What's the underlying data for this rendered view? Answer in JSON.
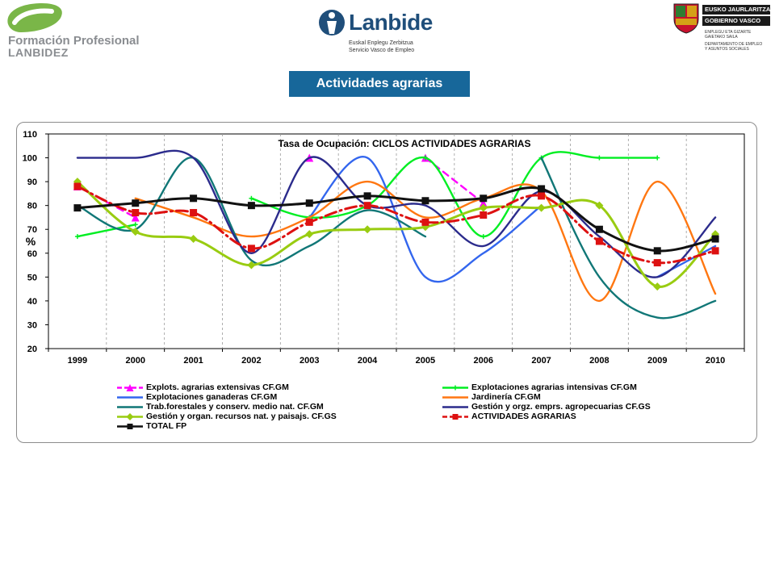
{
  "header": {
    "logo_left_line1": "Formación Profesional",
    "logo_left_line2": "LANBIDEZ",
    "logo_mid_brand": "Lanbide",
    "logo_mid_sub1": "Euskal Enplegu Zerbitzua",
    "logo_mid_sub2": "Servicio Vasco de Empleo",
    "logo_right_bar1": "EUSKO JAURLARITZA",
    "logo_right_bar2": "GOBIERNO VASCO",
    "logo_right_small": [
      "ENPLEGU ETA GIZARTE",
      "GAIETAKO SAILA",
      "DEPARTAMENTO DE EMPLEO",
      "Y ASUNTOS SOCIALES"
    ]
  },
  "page_title": "Actividades agrarias",
  "chart_data": {
    "type": "line",
    "title": "Tasa de Ocupación: CICLOS ACTIVIDADES AGRARIAS",
    "ylabel": "%",
    "xlabel": "",
    "ylim": [
      20,
      110
    ],
    "yticks": [
      20,
      30,
      40,
      50,
      60,
      70,
      80,
      90,
      100,
      110
    ],
    "categories": [
      "1999",
      "2000",
      "2001",
      "2002",
      "2003",
      "2004",
      "2005",
      "2006",
      "2007",
      "2008",
      "2009",
      "2010"
    ],
    "grid": "vertical dashed",
    "legend_position": "bottom",
    "series": [
      {
        "name": "Explots. agrarias extensivas CF.GM",
        "color": "#ff00ff",
        "style": "dashed",
        "marker": "triangle",
        "values": [
          88,
          75,
          null,
          null,
          100,
          null,
          100,
          81,
          null,
          null,
          null,
          null
        ]
      },
      {
        "name": "Explotaciones agrarias intensivas CF.GM",
        "color": "#00ee22",
        "style": "solid",
        "marker": "plus",
        "values": [
          67,
          72,
          null,
          83,
          75,
          80,
          100,
          67,
          100,
          100,
          100,
          null
        ]
      },
      {
        "name": "Explotaciones ganaderas CF.GM",
        "color": "#3366ee",
        "style": "solid",
        "marker": "none",
        "values": [
          null,
          null,
          null,
          null,
          75,
          100,
          50,
          60,
          80,
          null,
          50,
          63
        ]
      },
      {
        "name": "Jardinería CF.GM",
        "color": "#ff7711",
        "style": "solid",
        "marker": "none",
        "values": [
          null,
          83,
          75,
          67,
          75,
          90,
          75,
          83,
          86,
          40,
          90,
          43
        ]
      },
      {
        "name": "Trab.forestales y conserv. medio nat. CF.GM",
        "color": "#117777",
        "style": "solid",
        "marker": "none",
        "values": [
          80,
          70,
          100,
          57,
          63,
          78,
          67,
          null,
          100,
          50,
          33,
          40
        ]
      },
      {
        "name": "Gestión y orgz. emprs. agropecuarias CF.GS",
        "color": "#2b2b8c",
        "style": "solid",
        "marker": "none",
        "values": [
          100,
          100,
          100,
          60,
          100,
          80,
          80,
          63,
          86,
          67,
          50,
          75
        ]
      },
      {
        "name": "Gestión y organ. recursos nat. y paisajs. CF.GS",
        "color": "#99cc11",
        "style": "solid",
        "marker": "diamond",
        "values": [
          90,
          69,
          66,
          55,
          68,
          70,
          71,
          79,
          79,
          80,
          46,
          68
        ]
      },
      {
        "name": "ACTIVIDADES AGRARIAS",
        "color": "#dd1111",
        "style": "dashed",
        "marker": "square",
        "values": [
          88,
          77,
          77,
          62,
          73,
          80,
          73,
          76,
          84,
          65,
          56,
          61
        ]
      },
      {
        "name": "TOTAL FP",
        "color": "#111111",
        "style": "solid",
        "marker": "square",
        "values": [
          79,
          81,
          83,
          80,
          81,
          84,
          82,
          83,
          87,
          70,
          61,
          66
        ]
      }
    ]
  },
  "colors": {
    "title_box_bg": "#17679a",
    "frame_border": "#8c8c8c",
    "logo_green": "#7ab648",
    "logo_blue": "#1f4e7a"
  }
}
